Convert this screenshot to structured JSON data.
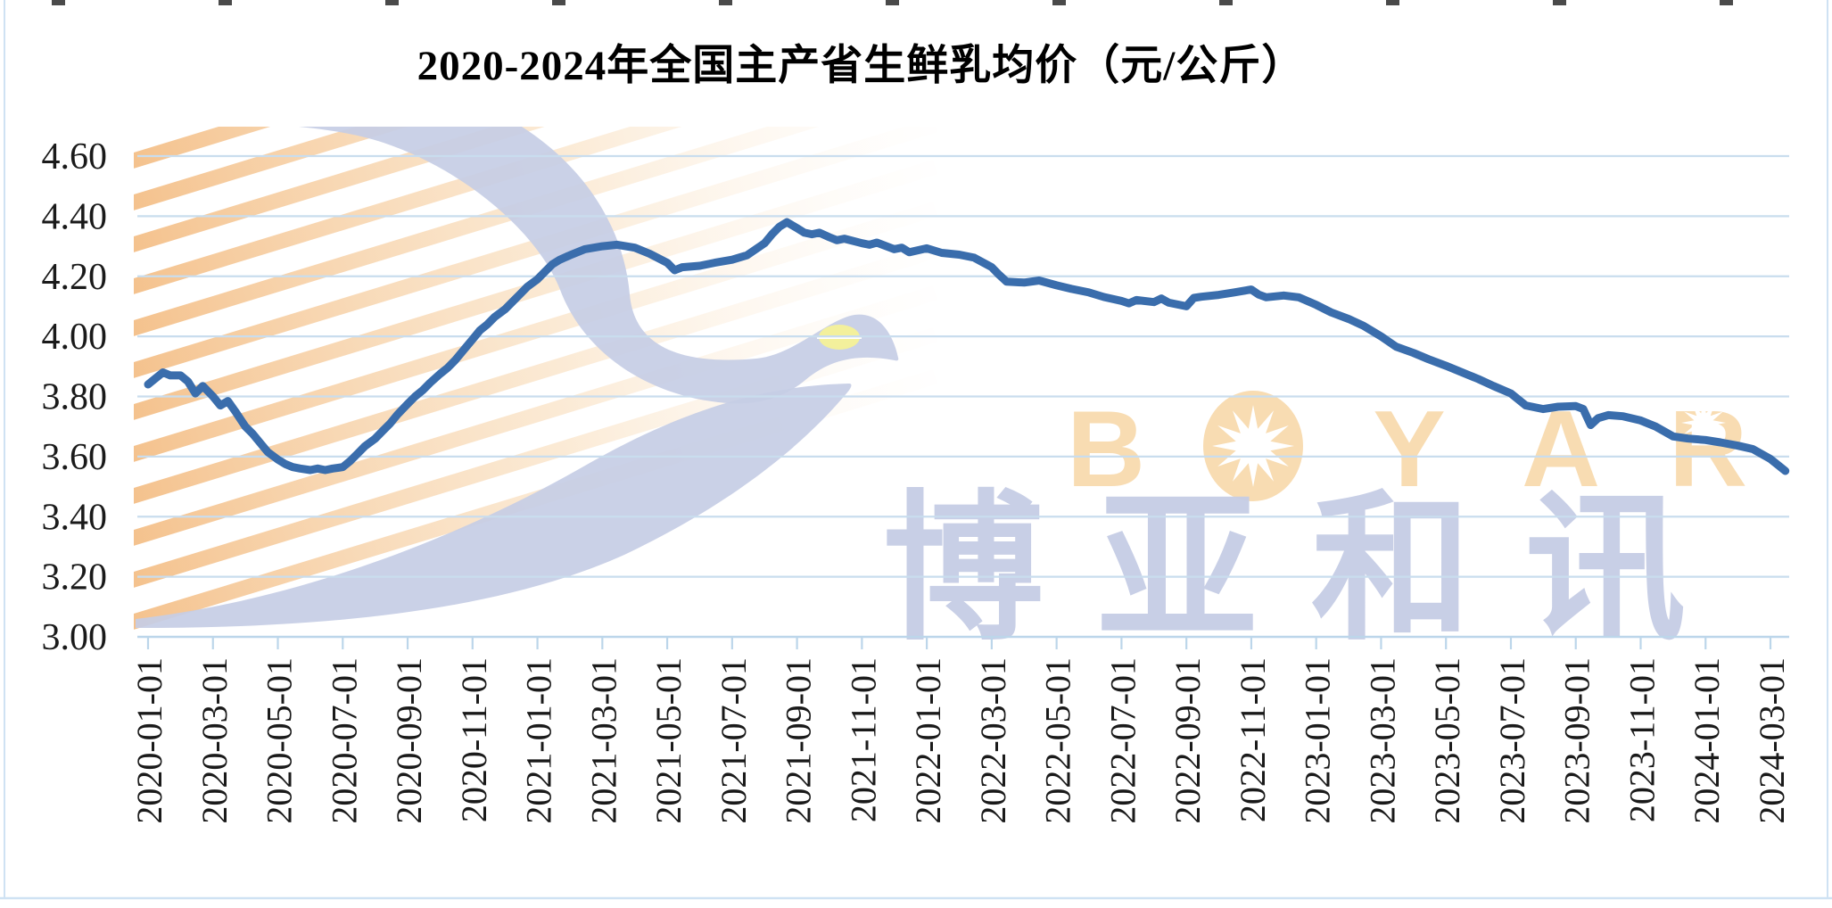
{
  "title": "2020-2024年全国主产省生鲜乳均价（元/公斤）",
  "y_axis": {
    "labels": [
      "4.60",
      "4.40",
      "4.20",
      "4.00",
      "3.80",
      "3.60",
      "3.40",
      "3.20",
      "3.00"
    ],
    "min": 3.0,
    "max": 4.6,
    "step": 0.2
  },
  "x_axis": {
    "labels": [
      "2020-01-01",
      "2020-03-01",
      "2020-05-01",
      "2020-07-01",
      "2020-09-01",
      "2020-11-01",
      "2021-01-01",
      "2021-03-01",
      "2021-05-01",
      "2021-07-01",
      "2021-09-01",
      "2021-11-01",
      "2022-01-01",
      "2022-03-01",
      "2022-05-01",
      "2022-07-01",
      "2022-09-01",
      "2022-11-01",
      "2023-01-01",
      "2023-03-01",
      "2023-05-01",
      "2023-07-01",
      "2023-09-01",
      "2023-11-01",
      "2024-01-01",
      "2024-03-01"
    ]
  },
  "watermark": {
    "brand_text": "BOYAR",
    "cn_text": "博亚和讯"
  },
  "colors": {
    "line": "#3a6dac",
    "grid": "#c9ddee",
    "axis": "#bcd6ea",
    "label_text": "#1a1a1a",
    "watermark_orange": "#f8dcb2",
    "watermark_blue": "#c6cde5",
    "stripe_orange": "#f0a95f",
    "eye_yellow": "#f3f09c",
    "border": "#cfe2f3"
  },
  "top_edge_marks": [
    58,
    245,
    432,
    619,
    806,
    993,
    1180,
    1367,
    1554,
    1741,
    1928
  ],
  "chart_data": {
    "type": "line",
    "title": "2020-2024年全国主产省生鲜乳均价（元/公斤）",
    "ylabel": "元/公斤",
    "ylim": [
      3.0,
      4.6
    ],
    "ytick_step": 0.2,
    "grid": "horizontal",
    "legend": "none",
    "xtick_labels": [
      "2020-01-01",
      "2020-03-01",
      "2020-05-01",
      "2020-07-01",
      "2020-09-01",
      "2020-11-01",
      "2021-01-01",
      "2021-03-01",
      "2021-05-01",
      "2021-07-01",
      "2021-09-01",
      "2021-11-01",
      "2022-01-01",
      "2022-03-01",
      "2022-05-01",
      "2022-07-01",
      "2022-09-01",
      "2022-11-01",
      "2023-01-01",
      "2023-03-01",
      "2023-05-01",
      "2023-07-01",
      "2023-09-01",
      "2023-11-01",
      "2024-01-01",
      "2024-03-01"
    ],
    "points": [
      [
        "2020-01-01",
        3.84
      ],
      [
        "2020-01-08",
        3.86
      ],
      [
        "2020-01-15",
        3.88
      ],
      [
        "2020-01-22",
        3.87
      ],
      [
        "2020-02-01",
        3.87
      ],
      [
        "2020-02-08",
        3.85
      ],
      [
        "2020-02-15",
        3.81
      ],
      [
        "2020-02-22",
        3.835
      ],
      [
        "2020-03-01",
        3.8
      ],
      [
        "2020-03-08",
        3.77
      ],
      [
        "2020-03-15",
        3.785
      ],
      [
        "2020-03-22",
        3.75
      ],
      [
        "2020-04-01",
        3.7
      ],
      [
        "2020-04-08",
        3.675
      ],
      [
        "2020-04-15",
        3.645
      ],
      [
        "2020-04-22",
        3.615
      ],
      [
        "2020-05-01",
        3.59
      ],
      [
        "2020-05-08",
        3.575
      ],
      [
        "2020-05-15",
        3.565
      ],
      [
        "2020-05-22",
        3.56
      ],
      [
        "2020-06-01",
        3.555
      ],
      [
        "2020-06-08",
        3.56
      ],
      [
        "2020-06-15",
        3.555
      ],
      [
        "2020-06-22",
        3.56
      ],
      [
        "2020-07-01",
        3.565
      ],
      [
        "2020-07-08",
        3.585
      ],
      [
        "2020-07-15",
        3.61
      ],
      [
        "2020-07-22",
        3.635
      ],
      [
        "2020-08-01",
        3.66
      ],
      [
        "2020-08-08",
        3.685
      ],
      [
        "2020-08-15",
        3.71
      ],
      [
        "2020-08-22",
        3.74
      ],
      [
        "2020-09-01",
        3.775
      ],
      [
        "2020-09-08",
        3.8
      ],
      [
        "2020-09-15",
        3.82
      ],
      [
        "2020-09-22",
        3.845
      ],
      [
        "2020-10-01",
        3.875
      ],
      [
        "2020-10-08",
        3.895
      ],
      [
        "2020-10-15",
        3.92
      ],
      [
        "2020-10-22",
        3.95
      ],
      [
        "2020-11-01",
        3.99
      ],
      [
        "2020-11-08",
        4.02
      ],
      [
        "2020-11-15",
        4.04
      ],
      [
        "2020-11-22",
        4.065
      ],
      [
        "2020-12-01",
        4.09
      ],
      [
        "2020-12-08",
        4.115
      ],
      [
        "2020-12-15",
        4.14
      ],
      [
        "2020-12-22",
        4.165
      ],
      [
        "2021-01-01",
        4.19
      ],
      [
        "2021-01-08",
        4.215
      ],
      [
        "2021-01-15",
        4.24
      ],
      [
        "2021-01-22",
        4.255
      ],
      [
        "2021-02-01",
        4.27
      ],
      [
        "2021-02-15",
        4.29
      ],
      [
        "2021-03-01",
        4.3
      ],
      [
        "2021-03-15",
        4.305
      ],
      [
        "2021-04-01",
        4.295
      ],
      [
        "2021-04-15",
        4.275
      ],
      [
        "2021-05-01",
        4.245
      ],
      [
        "2021-05-08",
        4.22
      ],
      [
        "2021-05-15",
        4.23
      ],
      [
        "2021-06-01",
        4.235
      ],
      [
        "2021-06-15",
        4.245
      ],
      [
        "2021-07-01",
        4.255
      ],
      [
        "2021-07-15",
        4.27
      ],
      [
        "2021-08-01",
        4.31
      ],
      [
        "2021-08-08",
        4.34
      ],
      [
        "2021-08-15",
        4.365
      ],
      [
        "2021-08-22",
        4.38
      ],
      [
        "2021-09-01",
        4.36
      ],
      [
        "2021-09-08",
        4.345
      ],
      [
        "2021-09-15",
        4.34
      ],
      [
        "2021-09-22",
        4.345
      ],
      [
        "2021-10-01",
        4.33
      ],
      [
        "2021-10-08",
        4.32
      ],
      [
        "2021-10-15",
        4.325
      ],
      [
        "2021-11-01",
        4.31
      ],
      [
        "2021-11-08",
        4.305
      ],
      [
        "2021-11-15",
        4.312
      ],
      [
        "2021-12-01",
        4.29
      ],
      [
        "2021-12-08",
        4.295
      ],
      [
        "2021-12-15",
        4.28
      ],
      [
        "2022-01-01",
        4.293
      ],
      [
        "2022-01-15",
        4.278
      ],
      [
        "2022-02-01",
        4.272
      ],
      [
        "2022-02-15",
        4.262
      ],
      [
        "2022-03-01",
        4.23
      ],
      [
        "2022-03-08",
        4.205
      ],
      [
        "2022-03-15",
        4.182
      ],
      [
        "2022-04-01",
        4.179
      ],
      [
        "2022-04-15",
        4.186
      ],
      [
        "2022-05-01",
        4.17
      ],
      [
        "2022-05-15",
        4.158
      ],
      [
        "2022-06-01",
        4.146
      ],
      [
        "2022-06-15",
        4.131
      ],
      [
        "2022-07-01",
        4.118
      ],
      [
        "2022-07-08",
        4.11
      ],
      [
        "2022-07-15",
        4.121
      ],
      [
        "2022-08-01",
        4.114
      ],
      [
        "2022-08-08",
        4.126
      ],
      [
        "2022-08-15",
        4.112
      ],
      [
        "2022-09-01",
        4.1
      ],
      [
        "2022-09-08",
        4.128
      ],
      [
        "2022-09-15",
        4.132
      ],
      [
        "2022-10-01",
        4.138
      ],
      [
        "2022-10-15",
        4.146
      ],
      [
        "2022-11-01",
        4.156
      ],
      [
        "2022-11-08",
        4.139
      ],
      [
        "2022-11-15",
        4.13
      ],
      [
        "2022-12-01",
        4.136
      ],
      [
        "2022-12-15",
        4.13
      ],
      [
        "2023-01-01",
        4.105
      ],
      [
        "2023-01-15",
        4.08
      ],
      [
        "2023-02-01",
        4.058
      ],
      [
        "2023-02-15",
        4.035
      ],
      [
        "2023-03-01",
        4.0
      ],
      [
        "2023-03-15",
        3.966
      ],
      [
        "2023-04-01",
        3.945
      ],
      [
        "2023-04-15",
        3.924
      ],
      [
        "2023-05-01",
        3.902
      ],
      [
        "2023-05-15",
        3.882
      ],
      [
        "2023-06-01",
        3.858
      ],
      [
        "2023-06-15",
        3.835
      ],
      [
        "2023-07-01",
        3.81
      ],
      [
        "2023-07-15",
        3.77
      ],
      [
        "2023-08-01",
        3.758
      ],
      [
        "2023-08-15",
        3.766
      ],
      [
        "2023-09-01",
        3.768
      ],
      [
        "2023-09-08",
        3.758
      ],
      [
        "2023-09-15",
        3.705
      ],
      [
        "2023-09-22",
        3.728
      ],
      [
        "2023-10-01",
        3.738
      ],
      [
        "2023-10-15",
        3.734
      ],
      [
        "2023-11-01",
        3.72
      ],
      [
        "2023-11-08",
        3.71
      ],
      [
        "2023-11-15",
        3.7
      ],
      [
        "2023-12-01",
        3.667
      ],
      [
        "2023-12-15",
        3.66
      ],
      [
        "2024-01-01",
        3.655
      ],
      [
        "2024-01-15",
        3.647
      ],
      [
        "2024-02-01",
        3.636
      ],
      [
        "2024-02-15",
        3.625
      ],
      [
        "2024-03-01",
        3.592
      ],
      [
        "2024-03-08",
        3.572
      ],
      [
        "2024-03-15",
        3.552
      ]
    ]
  }
}
